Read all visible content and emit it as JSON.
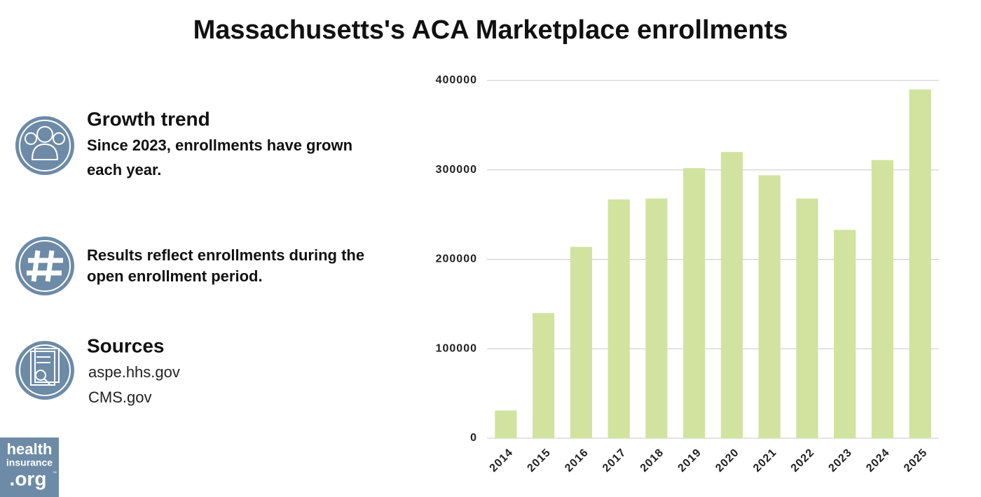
{
  "chart_data": {
    "type": "bar",
    "title": "Massachusetts's ACA Marketplace enrollments",
    "categories": [
      "2014",
      "2015",
      "2016",
      "2017",
      "2018",
      "2019",
      "2020",
      "2021",
      "2022",
      "2023",
      "2024",
      "2025"
    ],
    "values": [
      31000,
      140000,
      214000,
      267000,
      268000,
      302000,
      320000,
      294000,
      268000,
      233000,
      311000,
      390000
    ],
    "color": "#d1e39f",
    "ylim": [
      0,
      400000
    ],
    "yticks": [
      0,
      100000,
      200000,
      300000,
      400000
    ],
    "grid": true
  },
  "panel": {
    "trend": {
      "heading": "Growth trend",
      "lines": [
        "Since 2023, enrollments have grown",
        "each year."
      ]
    },
    "note": {
      "lines": [
        "Results reflect enrollments during the",
        "open enrollment period."
      ]
    },
    "sources": {
      "heading": "Sources",
      "lines": [
        "aspe.hhs.gov",
        "CMS.gov"
      ]
    }
  },
  "logo": {
    "lines": [
      "health",
      "insurance",
      ".org"
    ],
    "mark": "™"
  }
}
